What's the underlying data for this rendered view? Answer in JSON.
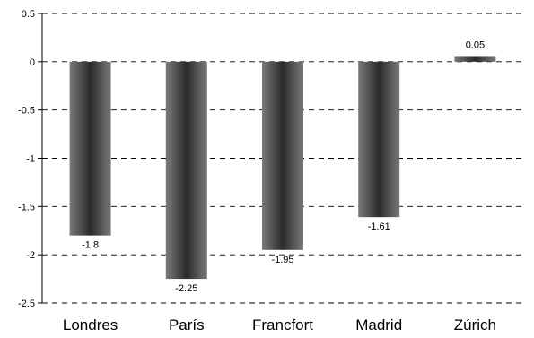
{
  "chart_data": {
    "type": "bar",
    "categories": [
      "Londres",
      "París",
      "Francfort",
      "Madrid",
      "Zúrich"
    ],
    "values": [
      -1.8,
      -2.25,
      -1.95,
      -1.61,
      0.05
    ],
    "data_labels": [
      "-1.8",
      "-2.25",
      "-1.95",
      "-1.61",
      "0.05"
    ],
    "ylim": [
      -2.5,
      0.5
    ],
    "yticks": [
      0.5,
      0,
      -0.5,
      -1,
      -1.5,
      -2,
      -2.5
    ],
    "ytick_labels": [
      "0.5",
      "0",
      "-0.5",
      "-1",
      "-1.5",
      "-2",
      "-2.5"
    ],
    "grid": "dashed-horizontal",
    "legend": "none",
    "colors": {
      "bar_edge": "#7a7a7a",
      "bar_center": "#2a2a2a",
      "grid": "#000000",
      "axis": "#000000"
    }
  }
}
